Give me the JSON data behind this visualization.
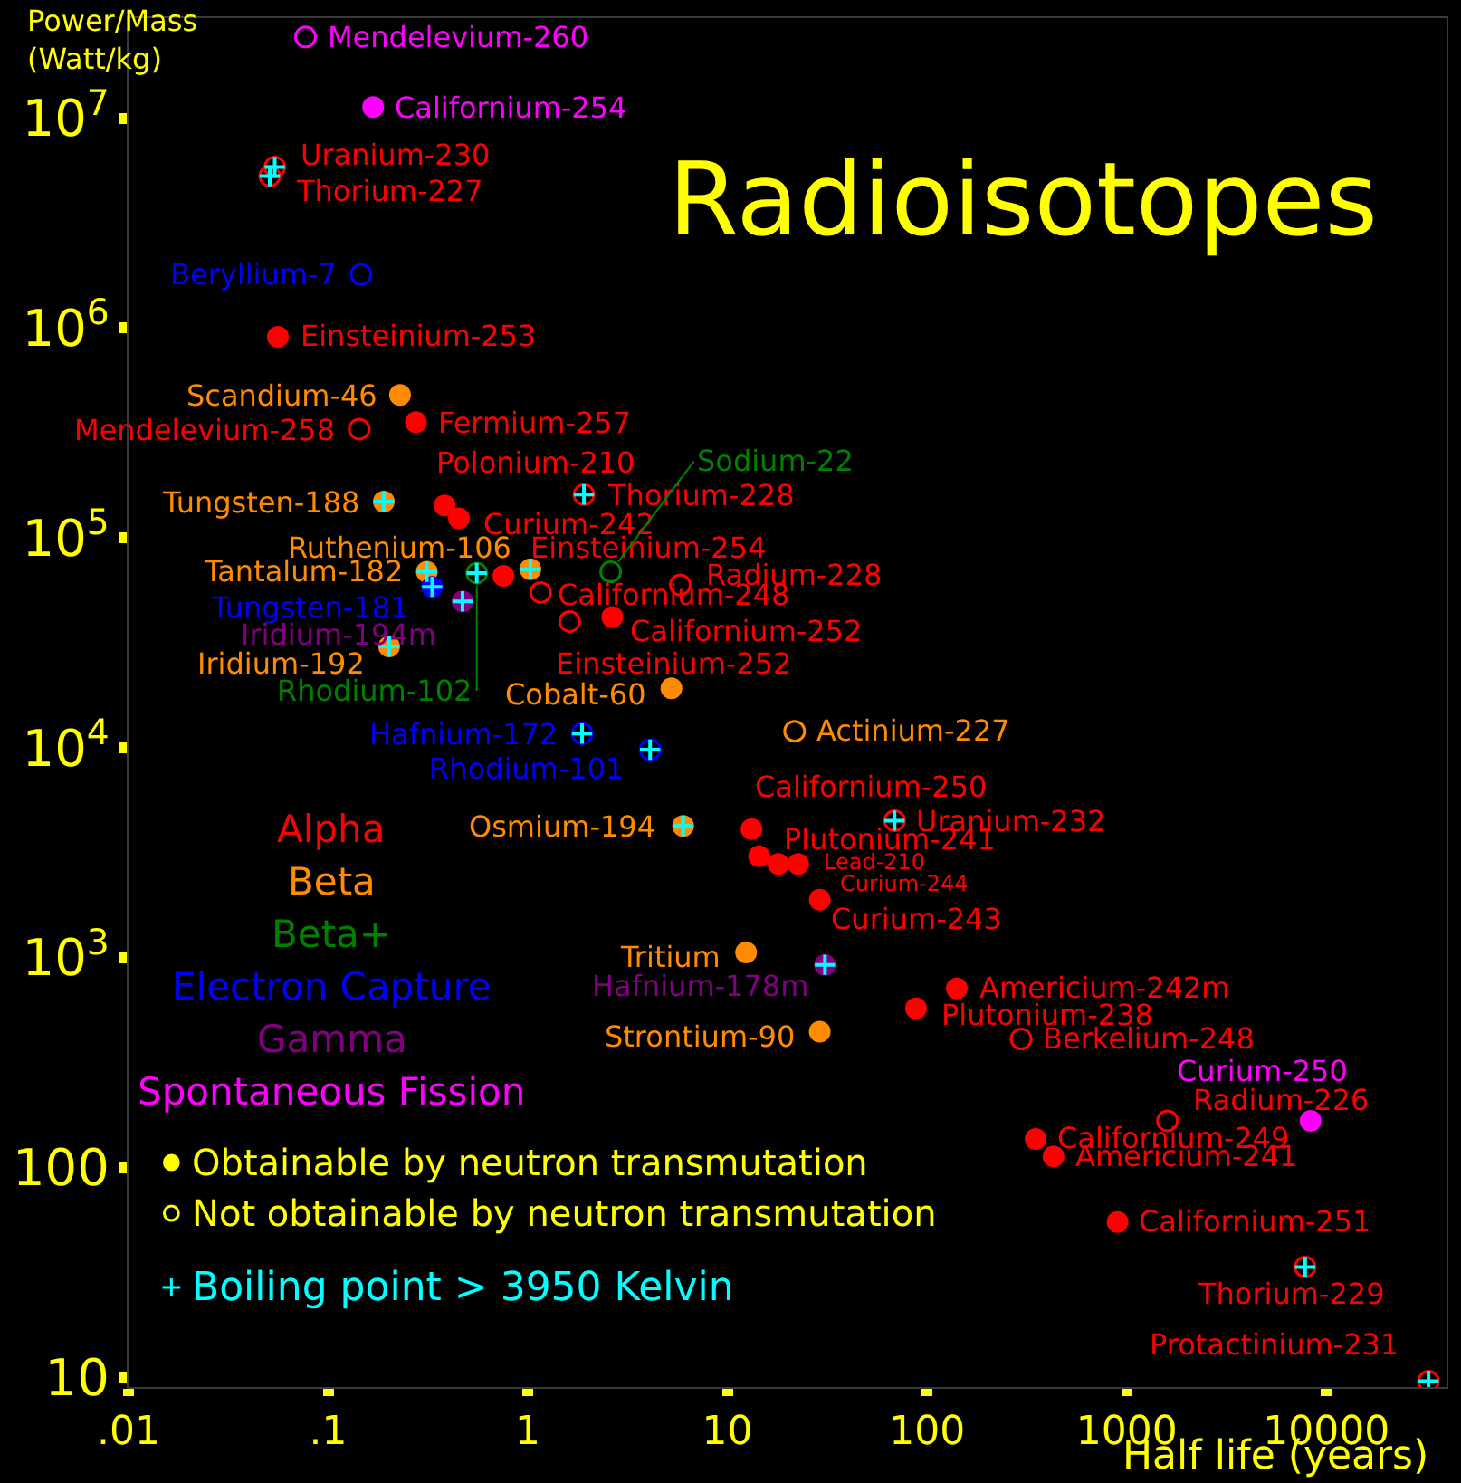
{
  "chart_data": {
    "type": "scatter",
    "title": "Radioisotopes",
    "xlabel": "Half life (years)",
    "ylabel": "Power/Mass\n(Watt/kg)",
    "log": "xy",
    "grid": false,
    "legend": "bottom left",
    "xlim": [
      0.01,
      40000
    ],
    "xticks": [
      {
        "value": 0.01,
        "label": ".01"
      },
      {
        "value": 0.1,
        "label": ".1"
      },
      1,
      10,
      100,
      1000,
      10000
    ],
    "ylim": [
      9,
      30000000
    ],
    "yticks": [
      10,
      100,
      {
        "value": 1000,
        "label": "10$^{3}$"
      },
      {
        "value": 10000,
        "label": "10$^{4}$"
      },
      {
        "value": 100000,
        "label": "10$^{5}$"
      },
      {
        "value": 1000000,
        "label": "10$^{6}$"
      },
      {
        "value": 10000000,
        "label": "10$^{7}$"
      }
    ],
    "series": [
      {
        "name": "Alpha",
        "color": "#ff0000",
        "marker": "circle",
        "x": [
          0.056,
          0.275,
          0.383,
          0.452,
          0.755,
          2.65,
          13.2,
          14.4,
          18,
          22.6,
          29,
          141,
          88,
          350,
          430,
          900
        ],
        "values": [
          910000,
          356000,
          143000,
          124000,
          66000,
          42000,
          4100,
          3040,
          2800,
          2800,
          1890,
          713,
          574,
          137,
          113,
          55
        ],
        "value_labels": [
          "Einsteinium-253",
          "Fermium-257",
          "Polonium-210",
          "Curium-242",
          "Einsteinium-254",
          "Californium-252",
          "Californium-250",
          "Plutonium-241",
          "Lead-210",
          "Curium-244",
          "Curium-243",
          "Americium-242m",
          "Plutonium-238",
          "Californium-249",
          "Americium-241",
          "Californium-251"
        ]
      },
      {
        "color": "#ff0000",
        "marker": "circle-open",
        "x": [
          0.054,
          0.051,
          0.143,
          1.91,
          5.8,
          1.16,
          1.62,
          68.7,
          296,
          1600,
          7830,
          32500
        ],
        "values": [
          5850000,
          5300000,
          330000,
          161000,
          59700,
          55000,
          40000,
          4500,
          410,
          167,
          33.6,
          9.6
        ],
        "value_labels": [
          "Uranium-230",
          "Thorium-227",
          "Mendelevium-258",
          "Thorium-228",
          "Radium-228",
          "Californium-248",
          "Einsteinium-252",
          "Uranium-232",
          "Berkelium-248",
          "Radium-226",
          "Thorium-229",
          "Protactinium-231"
        ]
      },
      {
        "name": "Beta",
        "color": "#ff8c00",
        "marker": "circle",
        "x": [
          0.229,
          0.19,
          1.03,
          0.312,
          0.202,
          5.24,
          6.0,
          12.4,
          29
        ],
        "values": [
          480000,
          149000,
          71000,
          69000,
          30400,
          19200,
          4250,
          1060,
          444
        ],
        "value_labels": [
          "Scandium-46",
          "Tungsten-188",
          "Ruthenium-106",
          "Tantalum-182",
          "Iridium-192",
          "Cobalt-60",
          "Osmium-194",
          "Tritium",
          "Strontium-90"
        ]
      },
      {
        "color": "#ff8c00",
        "marker": "circle-open",
        "x": [
          21.7
        ],
        "values": [
          12000
        ],
        "value_labels": [
          "Actinium-227"
        ]
      },
      {
        "name": "Beta+",
        "color": "#008000",
        "marker": "circle-open",
        "x": [
          2.6,
          0.555
        ],
        "values": [
          69000,
          68000
        ],
        "value_labels": [
          "Sodium-22",
          "Rhodium-102"
        ]
      },
      {
        "name": "Electron Capture",
        "color": "#0000ff",
        "marker": "circle",
        "x": [
          0.332
        ],
        "values": [
          58500
        ],
        "value_labels": [
          "Tungsten-181"
        ]
      },
      {
        "color": "#0000ff",
        "marker": "circle-open",
        "x": [
          0.146,
          1.87,
          4.1
        ],
        "values": [
          1800000,
          11700,
          9800
        ],
        "value_labels": [
          "Beryllium-7",
          "Hafnium-172",
          "Rhodium-101"
        ]
      },
      {
        "name": "Gamma",
        "color": "#800080",
        "marker": "circle",
        "x": [
          0.471,
          30.8
        ],
        "values": [
          49900,
          925
        ],
        "value_labels": [
          "Iridium-194m",
          "Hafnium-178m"
        ]
      },
      {
        "name": "Spontaneous Fission",
        "color": "#ff00ff",
        "marker": "circle",
        "x": [
          0.168,
          8340
        ],
        "values": [
          11300000,
          167
        ],
        "value_labels": [
          "Californium-254",
          "Curium-250"
        ]
      },
      {
        "color": "#ff00ff",
        "marker": "circle-open",
        "x": [
          0.077
        ],
        "values": [
          24400000
        ],
        "value_labels": [
          "Mendelevium-260"
        ]
      },
      {
        "name": "Obtainable by neutron transmutation",
        "color": "#ffff00",
        "marker": "circle"
      },
      {
        "name": "Not obtainable by neutron transmutation",
        "color": "#ffff00",
        "marker": "circle-open"
      },
      {
        "name": "Boiling point > 3950 Kelvin",
        "color": "#00ffff",
        "marker": "cross",
        "x": [
          0.054,
          0.051,
          1.91,
          0.19,
          1.03,
          0.312,
          0.332,
          0.555,
          0.471,
          0.202,
          1.87,
          4.1,
          6.0,
          68.7,
          30.8,
          7830,
          32500
        ],
        "values": [
          5850000,
          5300000,
          161000,
          149000,
          71000,
          69000,
          58500,
          68000,
          49900,
          30400,
          11700,
          9800,
          4250,
          4500,
          925,
          33.6,
          9.6
        ]
      }
    ]
  }
}
